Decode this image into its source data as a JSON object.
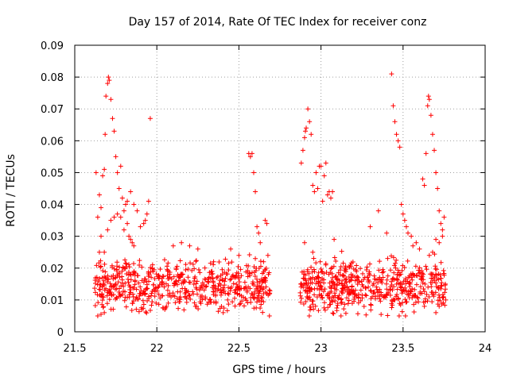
{
  "chart_data": {
    "type": "scatter",
    "title": "Day 157 of 2014, Rate Of TEC Index for receiver conz",
    "xlabel": "GPS time / hours",
    "ylabel": "ROTI / TECUs",
    "xlim": [
      21.5,
      24
    ],
    "ylim": [
      0,
      0.09
    ],
    "xticks": [
      21.5,
      22,
      22.5,
      23,
      23.5,
      24
    ],
    "xtick_labels": [
      "21.5",
      "22",
      "22.5",
      "23",
      "23.5",
      "24"
    ],
    "yticks": [
      0,
      0.01,
      0.02,
      0.03,
      0.04,
      0.05,
      0.06,
      0.07,
      0.08,
      0.09
    ],
    "ytick_labels": [
      "0",
      "0.01",
      "0.02",
      "0.03",
      "0.04",
      "0.05",
      "0.06",
      "0.07",
      "0.08",
      "0.09"
    ],
    "grid": true,
    "marker": "+",
    "color": "#ff0000",
    "series": [
      {
        "name": "ROTI",
        "segments": [
          {
            "x_start": 21.62,
            "x_end": 22.69,
            "n": 620,
            "base_mean": 0.0145,
            "base_spread": 0.0065
          },
          {
            "x_start": 22.87,
            "x_end": 23.76,
            "n": 560,
            "base_mean": 0.0145,
            "base_spread": 0.0065
          }
        ],
        "points": [
          [
            21.63,
            0.05
          ],
          [
            21.64,
            0.036
          ],
          [
            21.65,
            0.043
          ],
          [
            21.66,
            0.039
          ],
          [
            21.67,
            0.049
          ],
          [
            21.68,
            0.051
          ],
          [
            21.685,
            0.062
          ],
          [
            21.69,
            0.074
          ],
          [
            21.7,
            0.078
          ],
          [
            21.705,
            0.08
          ],
          [
            21.71,
            0.079
          ],
          [
            21.72,
            0.073
          ],
          [
            21.73,
            0.067
          ],
          [
            21.74,
            0.063
          ],
          [
            21.75,
            0.055
          ],
          [
            21.76,
            0.05
          ],
          [
            21.77,
            0.045
          ],
          [
            21.78,
            0.052
          ],
          [
            21.79,
            0.042
          ],
          [
            21.8,
            0.038
          ],
          [
            21.81,
            0.04
          ],
          [
            21.82,
            0.034
          ],
          [
            21.83,
            0.03
          ],
          [
            21.84,
            0.029
          ],
          [
            21.85,
            0.028
          ],
          [
            21.86,
            0.027
          ],
          [
            21.9,
            0.033
          ],
          [
            21.93,
            0.035
          ],
          [
            21.95,
            0.041
          ],
          [
            21.96,
            0.067
          ],
          [
            21.65,
            0.025
          ],
          [
            21.66,
            0.03
          ],
          [
            21.68,
            0.025
          ],
          [
            21.7,
            0.032
          ],
          [
            21.72,
            0.035
          ],
          [
            21.74,
            0.036
          ],
          [
            21.76,
            0.037
          ],
          [
            21.78,
            0.036
          ],
          [
            21.8,
            0.032
          ],
          [
            21.82,
            0.041
          ],
          [
            21.84,
            0.044
          ],
          [
            21.86,
            0.04
          ],
          [
            21.88,
            0.038
          ],
          [
            21.92,
            0.034
          ],
          [
            21.94,
            0.037
          ],
          [
            21.64,
            0.005
          ],
          [
            21.66,
            0.0055
          ],
          [
            21.68,
            0.006
          ],
          [
            22.1,
            0.027
          ],
          [
            22.15,
            0.028
          ],
          [
            22.2,
            0.027
          ],
          [
            22.25,
            0.026
          ],
          [
            22.45,
            0.026
          ],
          [
            22.5,
            0.024
          ],
          [
            22.56,
            0.056
          ],
          [
            22.57,
            0.055
          ],
          [
            22.58,
            0.056
          ],
          [
            22.59,
            0.05
          ],
          [
            22.6,
            0.044
          ],
          [
            22.61,
            0.033
          ],
          [
            22.62,
            0.031
          ],
          [
            22.63,
            0.028
          ],
          [
            22.66,
            0.035
          ],
          [
            22.67,
            0.034
          ],
          [
            22.6,
            0.023
          ],
          [
            22.65,
            0.022
          ],
          [
            22.68,
            0.018
          ],
          [
            22.88,
            0.053
          ],
          [
            22.89,
            0.057
          ],
          [
            22.9,
            0.061
          ],
          [
            22.905,
            0.063
          ],
          [
            22.91,
            0.064
          ],
          [
            22.92,
            0.07
          ],
          [
            22.93,
            0.066
          ],
          [
            22.94,
            0.062
          ],
          [
            22.95,
            0.046
          ],
          [
            22.96,
            0.044
          ],
          [
            22.97,
            0.05
          ],
          [
            22.98,
            0.045
          ],
          [
            22.99,
            0.052
          ],
          [
            23.0,
            0.052
          ],
          [
            23.01,
            0.041
          ],
          [
            23.02,
            0.049
          ],
          [
            23.03,
            0.053
          ],
          [
            23.04,
            0.043
          ],
          [
            23.05,
            0.044
          ],
          [
            23.06,
            0.042
          ],
          [
            23.07,
            0.044
          ],
          [
            23.08,
            0.029
          ],
          [
            22.9,
            0.028
          ],
          [
            22.95,
            0.025
          ],
          [
            23.3,
            0.033
          ],
          [
            23.35,
            0.038
          ],
          [
            23.4,
            0.031
          ],
          [
            23.43,
            0.081
          ],
          [
            23.44,
            0.071
          ],
          [
            23.45,
            0.066
          ],
          [
            23.46,
            0.062
          ],
          [
            23.47,
            0.06
          ],
          [
            23.48,
            0.058
          ],
          [
            23.49,
            0.04
          ],
          [
            23.5,
            0.037
          ],
          [
            23.51,
            0.035
          ],
          [
            23.52,
            0.033
          ],
          [
            23.53,
            0.031
          ],
          [
            23.55,
            0.03
          ],
          [
            23.58,
            0.028
          ],
          [
            23.62,
            0.048
          ],
          [
            23.63,
            0.046
          ],
          [
            23.64,
            0.056
          ],
          [
            23.65,
            0.071
          ],
          [
            23.655,
            0.074
          ],
          [
            23.66,
            0.073
          ],
          [
            23.67,
            0.068
          ],
          [
            23.68,
            0.062
          ],
          [
            23.69,
            0.057
          ],
          [
            23.7,
            0.05
          ],
          [
            23.71,
            0.045
          ],
          [
            23.72,
            0.038
          ],
          [
            23.73,
            0.034
          ],
          [
            23.74,
            0.032
          ],
          [
            23.75,
            0.036
          ],
          [
            23.7,
            0.029
          ],
          [
            23.72,
            0.028
          ],
          [
            23.74,
            0.03
          ],
          [
            23.72,
            0.008
          ],
          [
            23.7,
            0.006
          ],
          [
            23.76,
            0.01
          ],
          [
            23.68,
            0.025
          ],
          [
            23.6,
            0.026
          ],
          [
            23.56,
            0.027
          ],
          [
            23.66,
            0.024
          ]
        ]
      }
    ]
  }
}
